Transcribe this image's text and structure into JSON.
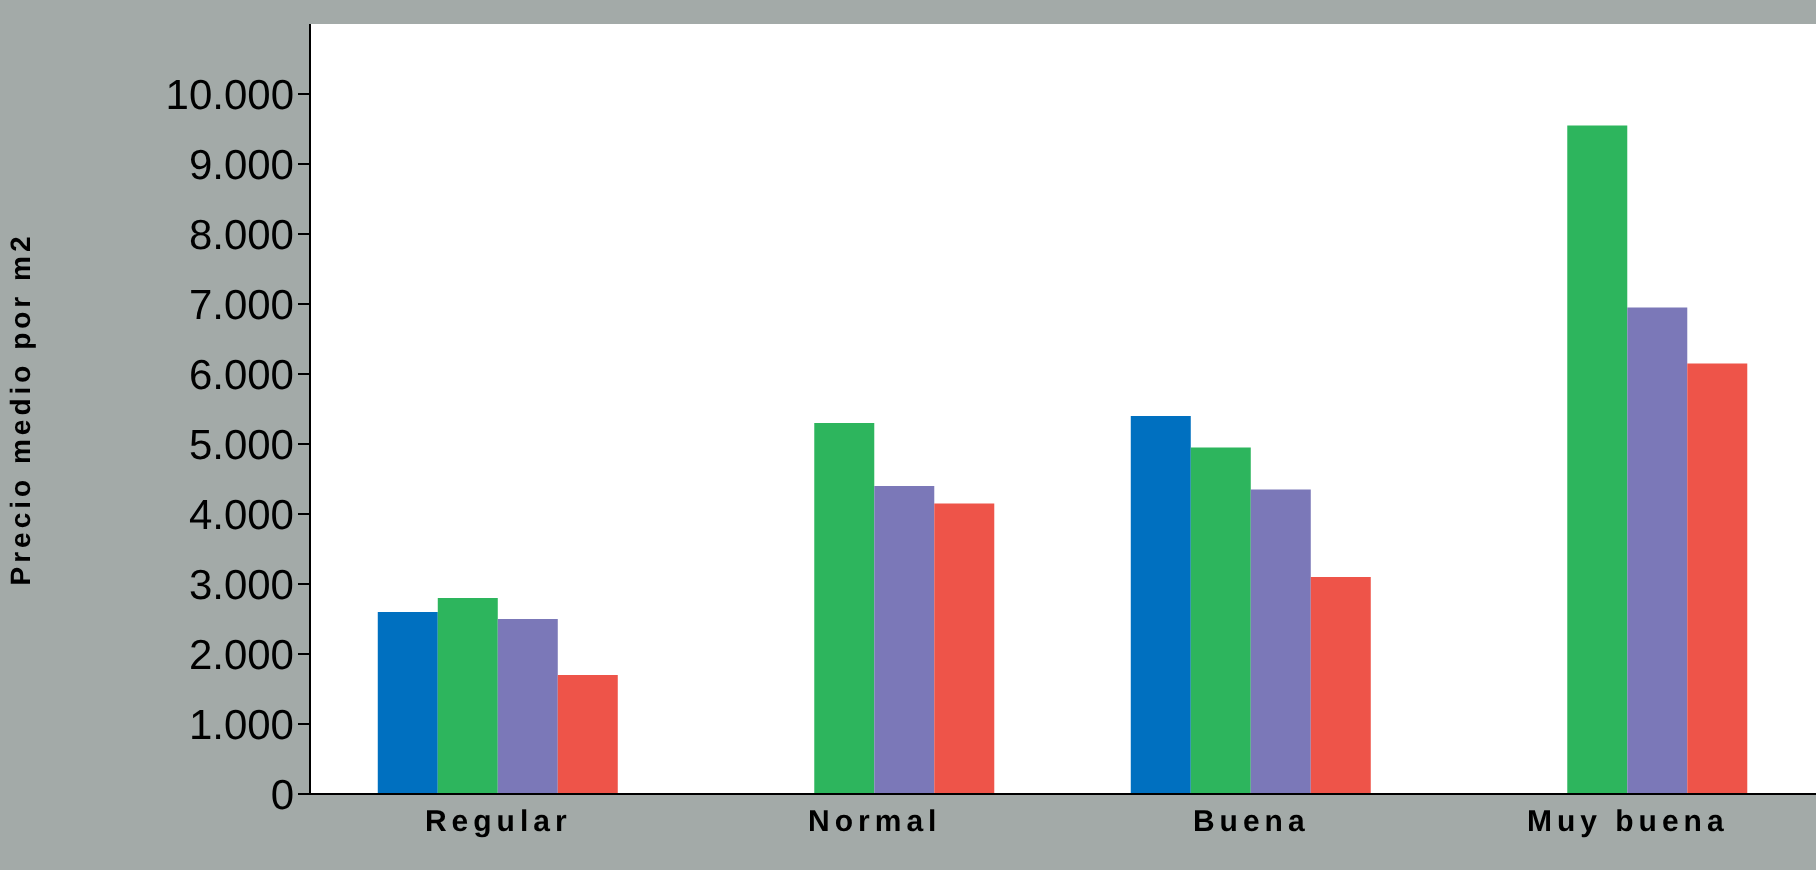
{
  "chart_data": {
    "type": "bar",
    "ylabel": "Precio medio por m2",
    "categories": [
      "Regular",
      "Normal",
      "Buena",
      "Muy buena"
    ],
    "series": [
      {
        "color": "#0070c0",
        "values": [
          2600,
          null,
          5400,
          null
        ]
      },
      {
        "color": "#2db55d",
        "values": [
          2800,
          5300,
          4950,
          9550
        ]
      },
      {
        "color": "#7b78b8",
        "values": [
          2500,
          4400,
          4350,
          6950
        ]
      },
      {
        "color": "#ee5449",
        "values": [
          1700,
          4150,
          3100,
          6150
        ]
      }
    ],
    "ylim": [
      0,
      11000
    ],
    "yticks": [
      {
        "value": 0,
        "label": "0"
      },
      {
        "value": 1000,
        "label": "1.000"
      },
      {
        "value": 2000,
        "label": "2.000"
      },
      {
        "value": 3000,
        "label": "3.000"
      },
      {
        "value": 4000,
        "label": "4.000"
      },
      {
        "value": 5000,
        "label": "5.000"
      },
      {
        "value": 6000,
        "label": "6.000"
      },
      {
        "value": 7000,
        "label": "7.000"
      },
      {
        "value": 8000,
        "label": "8.000"
      },
      {
        "value": 9000,
        "label": "9.000"
      },
      {
        "value": 10000,
        "label": "10.000"
      }
    ],
    "grid": false,
    "legend": false
  }
}
